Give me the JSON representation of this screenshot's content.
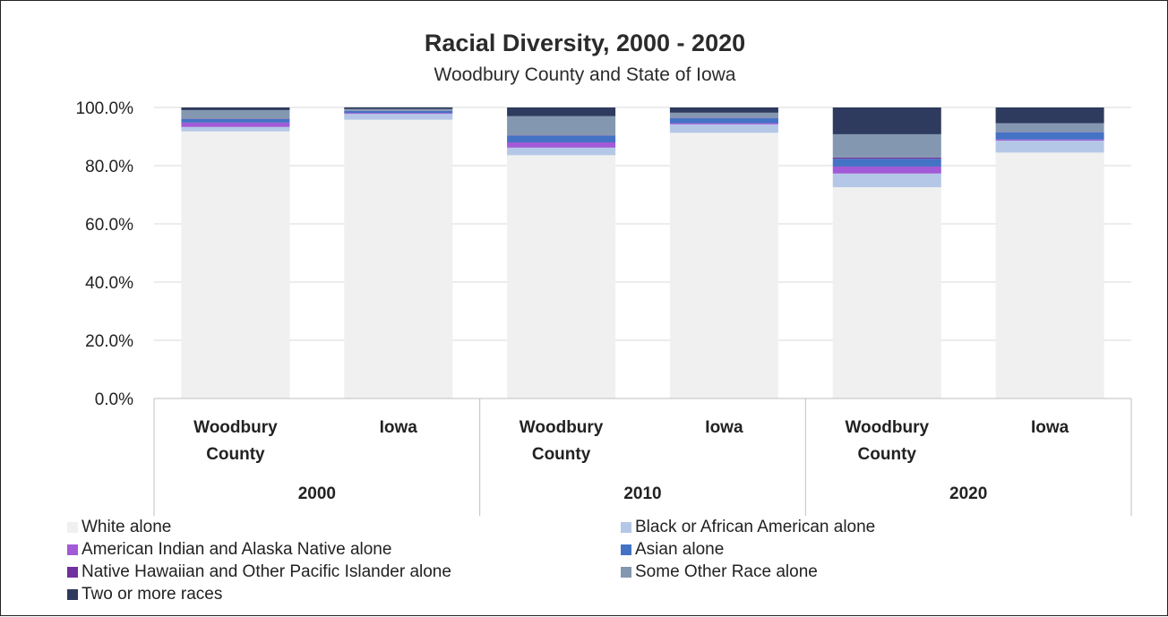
{
  "chart_data": {
    "type": "bar",
    "stacked": true,
    "title": "Racial Diversity, 2000 - 2020",
    "subtitle": "Woodbury County and State of Iowa",
    "ylim": [
      0,
      100
    ],
    "y_ticks": [
      "0.0%",
      "20.0%",
      "40.0%",
      "60.0%",
      "80.0%",
      "100.0%"
    ],
    "grid": true,
    "legend_position": "bottom",
    "groups": [
      "2000",
      "2010",
      "2020"
    ],
    "categories": [
      {
        "label": [
          "Woodbury",
          "County"
        ],
        "group": "2000"
      },
      {
        "label": [
          "Iowa"
        ],
        "group": "2000"
      },
      {
        "label": [
          "Woodbury",
          "County"
        ],
        "group": "2010"
      },
      {
        "label": [
          "Iowa"
        ],
        "group": "2010"
      },
      {
        "label": [
          "Woodbury",
          "County"
        ],
        "group": "2020"
      },
      {
        "label": [
          "Iowa"
        ],
        "group": "2020"
      }
    ],
    "series": [
      {
        "name": "White alone",
        "color": "#f0f0f0",
        "values": [
          91.8,
          95.8,
          83.6,
          91.3,
          72.6,
          84.5
        ]
      },
      {
        "name": "Black or African American alone",
        "color": "#b4c7e7",
        "values": [
          1.5,
          2.0,
          2.6,
          2.9,
          4.7,
          4.1
        ]
      },
      {
        "name": "American Indian and Alaska Native alone",
        "color": "#a25ad6",
        "values": [
          1.5,
          0.3,
          1.8,
          0.4,
          2.4,
          0.4
        ]
      },
      {
        "name": "Asian alone",
        "color": "#4472c4",
        "values": [
          1.2,
          0.7,
          2.3,
          1.7,
          2.7,
          2.5
        ]
      },
      {
        "name": "Native Hawaiian and Other Pacific Islander alone",
        "color": "#7030a0",
        "values": [
          0.1,
          0.05,
          0.1,
          0.1,
          0.4,
          0.1
        ]
      },
      {
        "name": "Some Other Race alone",
        "color": "#8497b0",
        "values": [
          3.0,
          0.6,
          6.6,
          1.8,
          8.0,
          3.0
        ]
      },
      {
        "name": "Two or more races",
        "color": "#2e3b5e",
        "values": [
          0.9,
          0.6,
          3.0,
          1.8,
          9.2,
          5.4
        ]
      }
    ]
  },
  "legend": {
    "items": [
      {
        "label": "White alone",
        "color": "#f0f0f0"
      },
      {
        "label": "Black or African American alone",
        "color": "#b4c7e7"
      },
      {
        "label": "American Indian and Alaska Native alone",
        "color": "#a25ad6"
      },
      {
        "label": "Asian alone",
        "color": "#4472c4"
      },
      {
        "label": "Native Hawaiian and Other Pacific Islander alone",
        "color": "#7030a0"
      },
      {
        "label": "Some Other Race alone",
        "color": "#8497b0"
      },
      {
        "label": "Two or more races",
        "color": "#2e3b5e"
      }
    ]
  }
}
